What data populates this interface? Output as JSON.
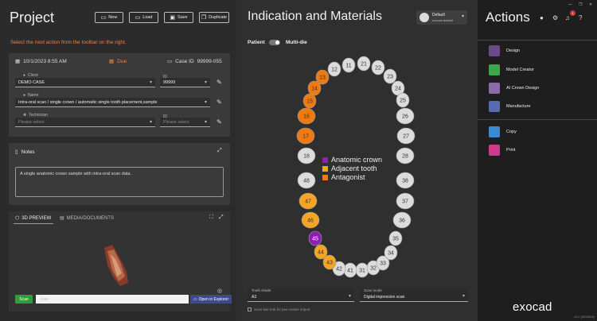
{
  "project": {
    "title": "Project",
    "hint": "Select the next action from the toolbar on the right.",
    "toolbar": {
      "new": "New",
      "load": "Load",
      "save": "Save",
      "duplicate": "Duplicate"
    }
  },
  "case": {
    "date": "10/1/2023 8:55 AM",
    "due": "Due",
    "case_id_label": "Case ID",
    "case_id": "99999-055",
    "client_label": "Client",
    "client_value": "DEMO CASE",
    "client_id_label": "ID",
    "client_id": "99999",
    "name_label": "Name",
    "name_value": "Intra-oral scan / single crown / automatic single tooth placement,sample",
    "technician_label": "Technician",
    "technician_placeholder": "Please select",
    "tech_id_label": "ID",
    "tech_id_placeholder": "Please select"
  },
  "notes": {
    "title": "Notes",
    "text": "A single anatomic crown sample with intra-oral scan data."
  },
  "preview": {
    "tab_3d": "3D PREVIEW",
    "tab_media": "MEDIA/DOCUMENTS",
    "scan_label": "Scan",
    "cad_label": "CAD",
    "explorer_label": "Open in Explorer"
  },
  "indication": {
    "title": "Indication and Materials",
    "material_name": "Default",
    "material_sub": "exocad default",
    "patient": "Patient",
    "multi_die": "Multi-die",
    "legend": [
      {
        "label": "Anatomic crown",
        "color": "#8e1fb0"
      },
      {
        "label": "Adjacent tooth",
        "color": "#f5a524"
      },
      {
        "label": "Antagonist",
        "color": "#f07a12"
      }
    ],
    "tooth_shade_label": "Tooth shade",
    "tooth_shade_value": "A3",
    "scan_mode_label": "Scan mode",
    "scan_mode_value": "Digital impression scan",
    "bite_fork_label": "Scan bite fork for jaw motion import",
    "teeth": [
      {
        "n": "11",
        "s": "w"
      },
      {
        "n": "12",
        "s": "w"
      },
      {
        "n": "13",
        "s": "o"
      },
      {
        "n": "14",
        "s": "o"
      },
      {
        "n": "15",
        "s": "o"
      },
      {
        "n": "16",
        "s": "o"
      },
      {
        "n": "17",
        "s": "o"
      },
      {
        "n": "18",
        "s": "w"
      },
      {
        "n": "21",
        "s": "w"
      },
      {
        "n": "22",
        "s": "w"
      },
      {
        "n": "23",
        "s": "w"
      },
      {
        "n": "24",
        "s": "w"
      },
      {
        "n": "25",
        "s": "w"
      },
      {
        "n": "26",
        "s": "w"
      },
      {
        "n": "27",
        "s": "w"
      },
      {
        "n": "28",
        "s": "w"
      },
      {
        "n": "31",
        "s": "w"
      },
      {
        "n": "32",
        "s": "w"
      },
      {
        "n": "33",
        "s": "w"
      },
      {
        "n": "34",
        "s": "w"
      },
      {
        "n": "35",
        "s": "w"
      },
      {
        "n": "36",
        "s": "w"
      },
      {
        "n": "37",
        "s": "w"
      },
      {
        "n": "38",
        "s": "w"
      },
      {
        "n": "41",
        "s": "w"
      },
      {
        "n": "42",
        "s": "w"
      },
      {
        "n": "43",
        "s": "y"
      },
      {
        "n": "44",
        "s": "y"
      },
      {
        "n": "45",
        "s": "p"
      },
      {
        "n": "46",
        "s": "y"
      },
      {
        "n": "47",
        "s": "y"
      },
      {
        "n": "48",
        "s": "w"
      }
    ]
  },
  "actions": {
    "title": "Actions",
    "notification_count": "1",
    "items": [
      "Design",
      "Model Creator",
      "AI Crown Design",
      "Manufacture"
    ],
    "items2": [
      "Copy",
      "Print"
    ],
    "logo": "exocad",
    "version": "v3.2 (8026/64)"
  }
}
